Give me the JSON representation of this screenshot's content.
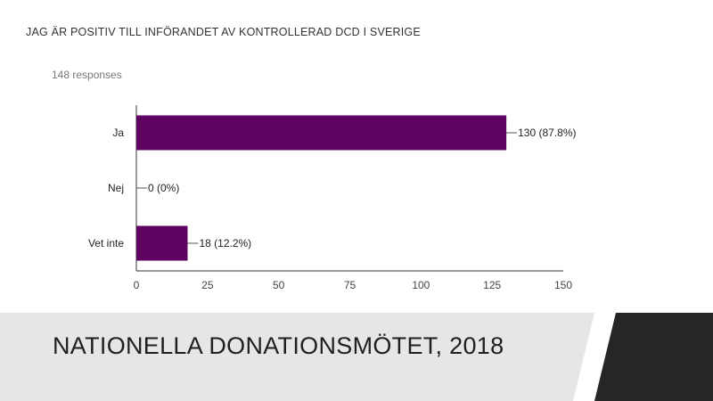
{
  "slide": {
    "question": "JAG ÄR POSITIV TILL INFÖRANDET AV KONTROLLERAD DCD I SVERIGE",
    "responses": "148 responses",
    "footer_title": "NATIONELLA DONATIONSMÖTET, 2018"
  },
  "chart_data": {
    "type": "bar",
    "orientation": "horizontal",
    "categories": [
      "Ja",
      "Nej",
      "Vet inte"
    ],
    "values": [
      130,
      0,
      18
    ],
    "data_labels": [
      "130 (87.8%)",
      "0 (0%)",
      "18 (12.2%)"
    ],
    "xlim": [
      0,
      150
    ],
    "xticks": [
      0,
      25,
      50,
      75,
      100,
      125,
      150
    ],
    "grid": false,
    "bar_color": "#5e0361"
  },
  "colors": {
    "footer_band": "#e7e6e6",
    "footer_dark": "#262626",
    "footer_stripe": "#ffffff"
  }
}
